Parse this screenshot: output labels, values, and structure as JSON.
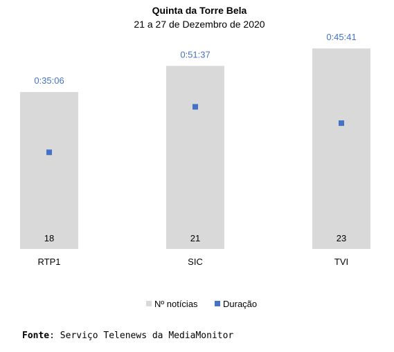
{
  "chart_data": {
    "type": "bar",
    "title": "Quinta da Torre Bela",
    "subtitle": "21 a 27 de Dezembro de 2020",
    "categories": [
      "RTP1",
      "SIC",
      "TVI"
    ],
    "series": [
      {
        "name": "Nº notícias",
        "kind": "bar",
        "color": "#D9D9D9",
        "values": [
          18,
          21,
          23
        ],
        "labels": [
          "18",
          "21",
          "23"
        ]
      },
      {
        "name": "Duração",
        "kind": "marker",
        "color": "#4472C4",
        "values_seconds": [
          2106,
          3097,
          2741
        ],
        "labels": [
          "0:35:06",
          "0:51:37",
          "0:45:41"
        ]
      }
    ],
    "legend": "bottom",
    "grid": false
  },
  "source": {
    "label": "Fonte",
    "text": ": Serviço Telenews da MediaMonitor"
  }
}
